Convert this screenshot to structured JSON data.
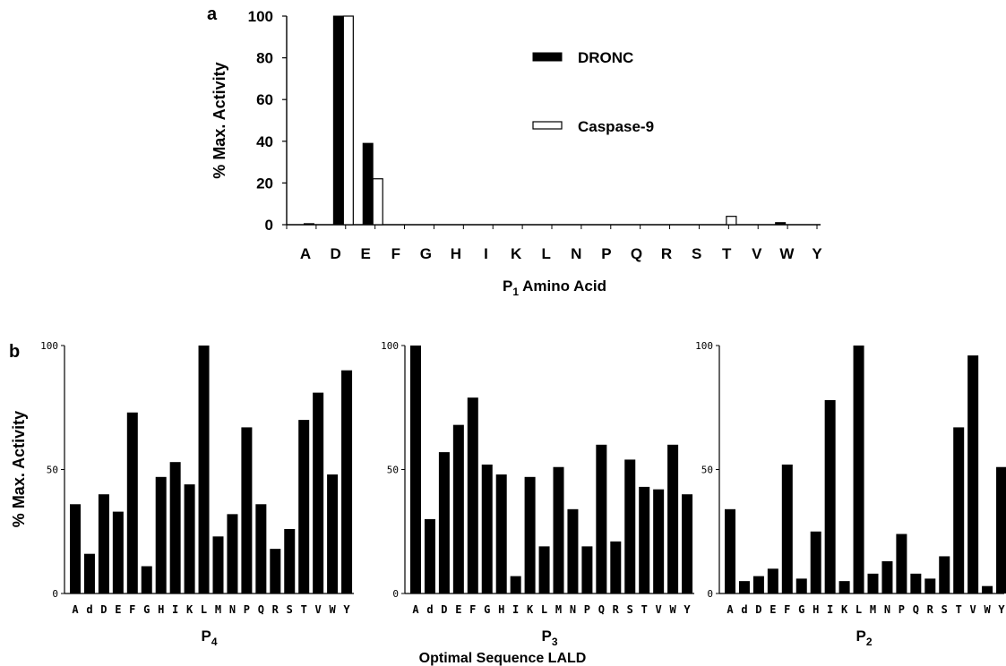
{
  "figure": {
    "panel_a_label": "a",
    "panel_b_label": "b",
    "shared_xlabel": "Optimal Sequence LALD"
  },
  "chart_data": [
    {
      "type": "bar",
      "panel": "a",
      "categories": [
        "A",
        "D",
        "E",
        "F",
        "G",
        "H",
        "I",
        "K",
        "L",
        "N",
        "P",
        "Q",
        "R",
        "S",
        "T",
        "V",
        "W",
        "Y"
      ],
      "series": [
        {
          "name": "DRONC",
          "color": "#000000",
          "values": [
            0.5,
            100,
            39,
            0,
            0,
            0,
            0,
            0,
            0,
            0,
            0,
            0,
            0,
            0,
            0,
            0,
            1,
            0
          ]
        },
        {
          "name": "Caspase-9",
          "color": "#ffffff",
          "values": [
            0,
            100,
            22,
            0,
            0,
            0,
            0,
            0,
            0,
            0,
            0,
            0,
            0,
            0,
            4,
            0,
            0,
            0
          ]
        }
      ],
      "ylabel": "% Max. Activity",
      "xlabel_prefix": "P",
      "xlabel_sub": "1",
      "xlabel_suffix": " Amino Acid",
      "yticks": [
        "0",
        "20",
        "40",
        "60",
        "80",
        "100"
      ],
      "ylim": [
        0,
        100
      ],
      "legend_position": "top-right"
    },
    {
      "type": "bar",
      "panel": "b",
      "categories": [
        "A",
        "d",
        "D",
        "E",
        "F",
        "G",
        "H",
        "I",
        "K",
        "L",
        "M",
        "N",
        "P",
        "Q",
        "R",
        "S",
        "T",
        "V",
        "W",
        "Y"
      ],
      "values": [
        36,
        16,
        40,
        33,
        73,
        11,
        47,
        53,
        44,
        100,
        23,
        32,
        67,
        36,
        18,
        26,
        70,
        81,
        48,
        90
      ],
      "ylabel": "% Max. Activity",
      "xlabel": "P",
      "xlabel_sub": "4",
      "yticks": [
        "0",
        "50",
        "100"
      ],
      "ylim": [
        0,
        100
      ]
    },
    {
      "type": "bar",
      "panel": "b",
      "categories": [
        "A",
        "d",
        "D",
        "E",
        "F",
        "G",
        "H",
        "I",
        "K",
        "L",
        "M",
        "N",
        "P",
        "Q",
        "R",
        "S",
        "T",
        "V",
        "W",
        "Y"
      ],
      "values": [
        100,
        30,
        57,
        68,
        79,
        52,
        48,
        7,
        47,
        19,
        51,
        34,
        19,
        60,
        21,
        54,
        43,
        42,
        60,
        40
      ],
      "xlabel": "P",
      "xlabel_sub": "3",
      "yticks": [
        "0",
        "50",
        "100"
      ],
      "ylim": [
        0,
        100
      ]
    },
    {
      "type": "bar",
      "panel": "b",
      "categories": [
        "A",
        "d",
        "D",
        "E",
        "F",
        "G",
        "H",
        "I",
        "K",
        "L",
        "M",
        "N",
        "P",
        "Q",
        "R",
        "S",
        "T",
        "V",
        "W",
        "Y"
      ],
      "values": [
        34,
        5,
        7,
        10,
        52,
        6,
        25,
        78,
        5,
        100,
        8,
        13,
        24,
        8,
        6,
        15,
        67,
        96,
        3,
        51
      ],
      "xlabel": "P",
      "xlabel_sub": "2",
      "yticks": [
        "0",
        "50",
        "100"
      ],
      "ylim": [
        0,
        100
      ]
    }
  ]
}
